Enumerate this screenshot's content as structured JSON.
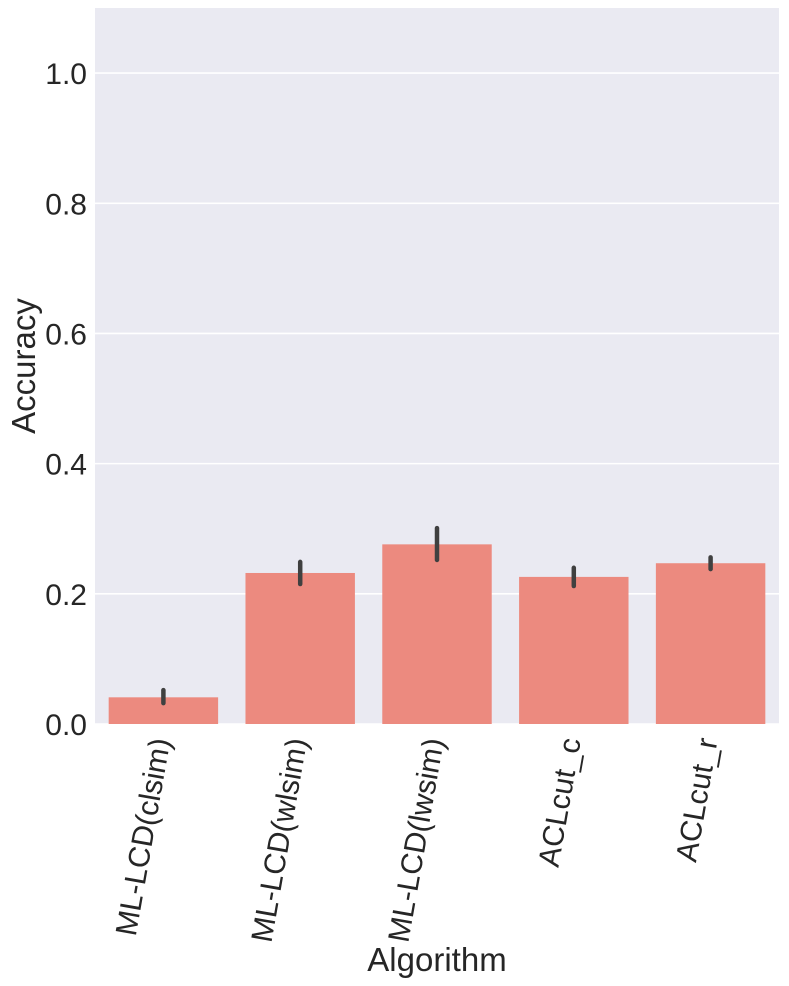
{
  "chart_data": {
    "type": "bar",
    "categories": [
      "ML-LCD(clsim)",
      "ML-LCD(wlsim)",
      "ML-LCD(lwsim)",
      "ACLcut_c",
      "ACLcut_r"
    ],
    "values": [
      0.041,
      0.232,
      0.276,
      0.226,
      0.247
    ],
    "error_low": [
      0.032,
      0.215,
      0.252,
      0.212,
      0.238
    ],
    "error_high": [
      0.052,
      0.249,
      0.301,
      0.24,
      0.256
    ],
    "xlabel": "Algorithm",
    "ylabel": "Accuracy",
    "ylim": [
      0,
      1.1
    ],
    "yticks": [
      "0.0",
      "0.2",
      "0.4",
      "0.6",
      "0.8",
      "1.0"
    ],
    "grid": true,
    "colors": {
      "bar": "#ec8a7f",
      "error_bar": "#404040",
      "plot_background": "#eaeaf2",
      "grid": "#ffffff",
      "text": "#262626"
    }
  }
}
